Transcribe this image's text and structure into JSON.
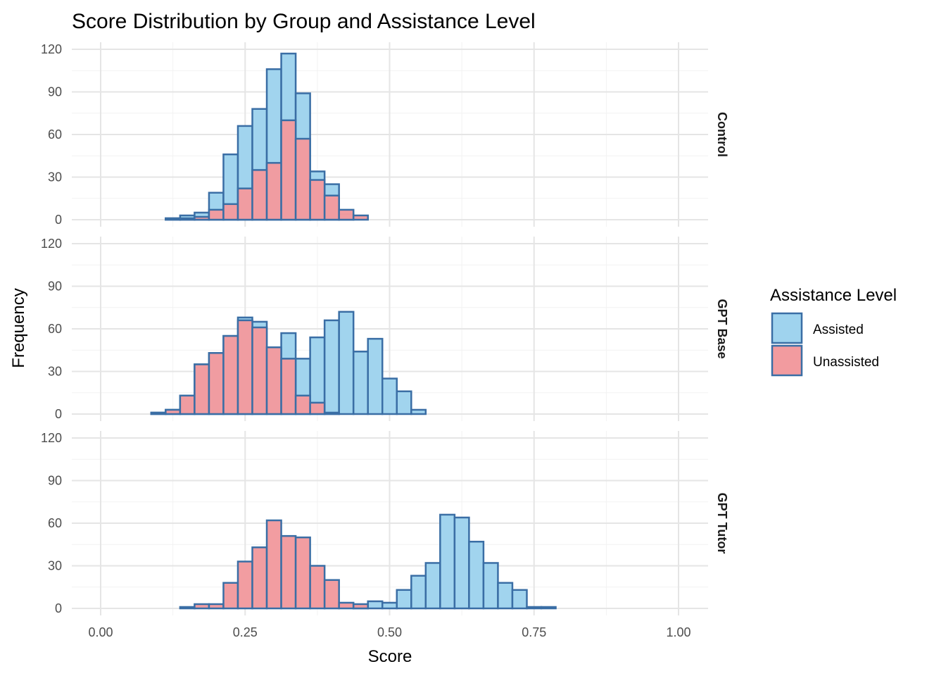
{
  "chart_data": {
    "type": "bar",
    "subtype": "faceted-overlaid-histogram",
    "title": "Score Distribution by Group and Assistance Level",
    "xlabel": "Score",
    "ylabel": "Frequency",
    "xlim": [
      0.0,
      1.0
    ],
    "ylim": [
      0,
      120
    ],
    "x_ticks": [
      "0.00",
      "0.25",
      "0.50",
      "0.75",
      "1.00"
    ],
    "x_tick_values": [
      0.0,
      0.25,
      0.5,
      0.75,
      1.0
    ],
    "y_ticks": [
      "0",
      "30",
      "60",
      "90",
      "120"
    ],
    "y_tick_values": [
      0,
      30,
      60,
      90,
      120
    ],
    "bins": {
      "start": 0.0125,
      "width": 0.025,
      "count": 39
    },
    "legend": {
      "title": "Assistance Level",
      "position": "right",
      "entries": [
        {
          "label": "Assisted",
          "fill": "#9fd3ee",
          "stroke": "#3a6ea5"
        },
        {
          "label": "Unassisted",
          "fill": "#f29b9f",
          "stroke": "#3a6ea5"
        }
      ]
    },
    "grid": true,
    "facets": [
      {
        "label": "Control",
        "series": [
          {
            "name": "Assisted",
            "values": [
              0,
              0,
              0,
              0,
              1,
              3,
              5,
              19,
              46,
              66,
              78,
              106,
              117,
              89,
              34,
              25,
              4,
              0,
              0,
              0,
              0,
              0,
              0,
              0,
              0,
              0,
              0,
              0,
              0,
              0,
              0,
              0,
              0,
              0,
              0,
              0,
              0,
              0,
              0
            ]
          },
          {
            "name": "Unassisted",
            "values": [
              0,
              0,
              0,
              0,
              1,
              1,
              2,
              7,
              11,
              22,
              35,
              40,
              70,
              57,
              28,
              17,
              7,
              3,
              0,
              0,
              0,
              0,
              0,
              0,
              0,
              0,
              0,
              0,
              0,
              0,
              0,
              0,
              0,
              0,
              0,
              0,
              0,
              0,
              0
            ]
          }
        ]
      },
      {
        "label": "GPT Base",
        "series": [
          {
            "name": "Assisted",
            "values": [
              0,
              0,
              0,
              1,
              3,
              13,
              35,
              43,
              55,
              68,
              65,
              47,
              57,
              39,
              54,
              66,
              72,
              44,
              53,
              25,
              16,
              3,
              0,
              0,
              0,
              0,
              0,
              0,
              0,
              0,
              0,
              0,
              0,
              0,
              0,
              0,
              0,
              0,
              0
            ]
          },
          {
            "name": "Unassisted",
            "values": [
              0,
              0,
              0,
              1,
              3,
              13,
              35,
              43,
              55,
              66,
              61,
              47,
              39,
              13,
              8,
              1,
              0,
              0,
              0,
              0,
              0,
              0,
              0,
              0,
              0,
              0,
              0,
              0,
              0,
              0,
              0,
              0,
              0,
              0,
              0,
              0,
              0,
              0,
              0
            ]
          }
        ]
      },
      {
        "label": "GPT Tutor",
        "series": [
          {
            "name": "Assisted",
            "values": [
              0,
              0,
              0,
              0,
              0,
              0,
              0,
              0,
              0,
              0,
              0,
              0,
              0,
              0,
              0,
              0,
              0,
              1,
              5,
              4,
              13,
              23,
              32,
              66,
              64,
              47,
              32,
              18,
              13,
              1,
              1,
              0,
              0,
              0,
              0,
              0,
              0,
              0,
              0
            ]
          },
          {
            "name": "Unassisted",
            "values": [
              0,
              0,
              0,
              0,
              0,
              1,
              3,
              3,
              18,
              33,
              43,
              62,
              51,
              50,
              30,
              20,
              4,
              3,
              0,
              0,
              0,
              0,
              0,
              0,
              0,
              0,
              0,
              0,
              0,
              0,
              0,
              0,
              0,
              0,
              0,
              0,
              0,
              0,
              0
            ]
          }
        ]
      }
    ]
  }
}
